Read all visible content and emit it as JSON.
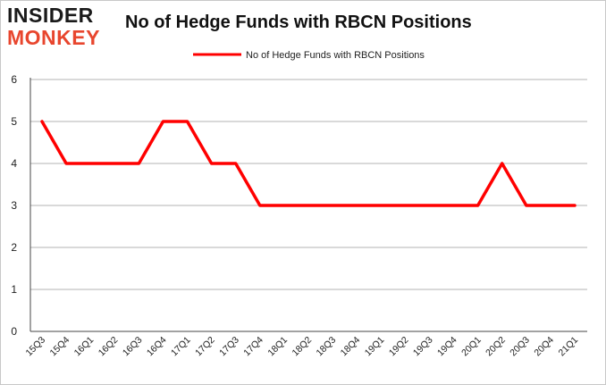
{
  "header": {
    "logo_top": "INSIDER",
    "logo_bottom": "MONKEY",
    "title": "No of Hedge Funds with RBCN Positions"
  },
  "colors": {
    "line": "#ff0000",
    "grid": "#b3b3b3",
    "logo_accent": "#e8462e"
  },
  "chart_data": {
    "type": "line",
    "title": "No of Hedge Funds with RBCN Positions",
    "xlabel": "",
    "ylabel": "",
    "ylim": [
      0,
      6
    ],
    "yticks": [
      0,
      1,
      2,
      3,
      4,
      5,
      6
    ],
    "grid": true,
    "legend_position": "top-center",
    "categories": [
      "15Q3",
      "15Q4",
      "16Q1",
      "16Q2",
      "16Q3",
      "16Q4",
      "17Q1",
      "17Q2",
      "17Q3",
      "17Q4",
      "18Q1",
      "18Q2",
      "18Q3",
      "18Q4",
      "19Q1",
      "19Q2",
      "19Q3",
      "19Q4",
      "20Q1",
      "20Q2",
      "20Q3",
      "20Q4",
      "21Q1"
    ],
    "series": [
      {
        "name": "No of Hedge Funds with RBCN Positions",
        "color": "#ff0000",
        "values": [
          5,
          4,
          4,
          4,
          4,
          5,
          5,
          4,
          4,
          3,
          3,
          3,
          3,
          3,
          3,
          3,
          3,
          3,
          3,
          4,
          3,
          3,
          3
        ]
      }
    ]
  }
}
